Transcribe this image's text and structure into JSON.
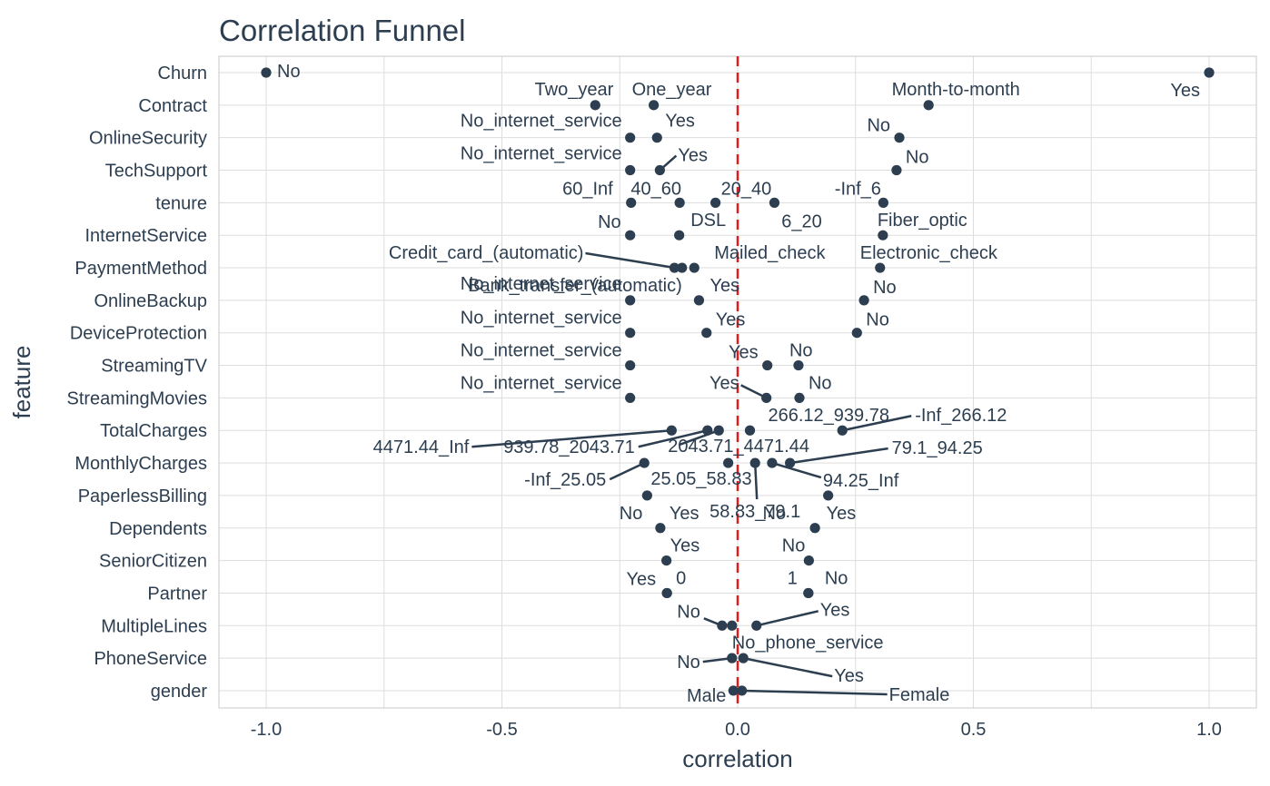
{
  "chart_data": {
    "type": "scatter",
    "title": "Correlation Funnel",
    "xlabel": "correlation",
    "ylabel": "feature",
    "xlim": [
      -1.09,
      1.1
    ],
    "x_ticks": [
      -1.0,
      -0.5,
      0.0,
      0.5,
      1.0
    ],
    "x_tick_labels": [
      "-1.0",
      "-0.5",
      "0.0",
      "0.5",
      "1.0"
    ],
    "reference_line": {
      "x": 0,
      "style": "dashed",
      "color": "#e31a1c"
    },
    "grid": true,
    "point_color": "#2c3e50",
    "features": [
      "Churn",
      "Contract",
      "OnlineSecurity",
      "TechSupport",
      "tenure",
      "InternetService",
      "PaymentMethod",
      "OnlineBackup",
      "DeviceProtection",
      "StreamingTV",
      "StreamingMovies",
      "TotalCharges",
      "MonthlyCharges",
      "PaperlessBilling",
      "Dependents",
      "SeniorCitizen",
      "Partner",
      "MultipleLines",
      "PhoneService",
      "gender"
    ],
    "points": [
      {
        "feature": "Churn",
        "label": "No",
        "x": -1.0
      },
      {
        "feature": "Churn",
        "label": "Yes",
        "x": 1.0
      },
      {
        "feature": "Contract",
        "label": "Two_year",
        "x": -0.302
      },
      {
        "feature": "Contract",
        "label": "One_year",
        "x": -0.178
      },
      {
        "feature": "Contract",
        "label": "Month-to-month",
        "x": 0.405
      },
      {
        "feature": "OnlineSecurity",
        "label": "No_internet_service",
        "x": -0.228
      },
      {
        "feature": "OnlineSecurity",
        "label": "Yes",
        "x": -0.171
      },
      {
        "feature": "OnlineSecurity",
        "label": "No",
        "x": 0.343
      },
      {
        "feature": "TechSupport",
        "label": "No_internet_service",
        "x": -0.228
      },
      {
        "feature": "TechSupport",
        "label": "Yes",
        "x": -0.165
      },
      {
        "feature": "TechSupport",
        "label": "No",
        "x": 0.337
      },
      {
        "feature": "tenure",
        "label": "60_Inf",
        "x": -0.226
      },
      {
        "feature": "tenure",
        "label": "40_60",
        "x": -0.123
      },
      {
        "feature": "tenure",
        "label": "20_40",
        "x": -0.047
      },
      {
        "feature": "tenure",
        "label": "6_20",
        "x": 0.078
      },
      {
        "feature": "tenure",
        "label": "-Inf_6",
        "x": 0.309
      },
      {
        "feature": "InternetService",
        "label": "No",
        "x": -0.228
      },
      {
        "feature": "InternetService",
        "label": "DSL",
        "x": -0.124
      },
      {
        "feature": "InternetService",
        "label": "Fiber_optic",
        "x": 0.308
      },
      {
        "feature": "PaymentMethod",
        "label": "Credit_card_(automatic)",
        "x": -0.134
      },
      {
        "feature": "PaymentMethod",
        "label": "Bank_transfer_(automatic)",
        "x": -0.118
      },
      {
        "feature": "PaymentMethod",
        "label": "Mailed_check",
        "x": -0.092
      },
      {
        "feature": "PaymentMethod",
        "label": "Electronic_check",
        "x": 0.302
      },
      {
        "feature": "OnlineBackup",
        "label": "No_internet_service",
        "x": -0.228
      },
      {
        "feature": "OnlineBackup",
        "label": "Yes",
        "x": -0.082
      },
      {
        "feature": "OnlineBackup",
        "label": "No",
        "x": 0.268
      },
      {
        "feature": "DeviceProtection",
        "label": "No_internet_service",
        "x": -0.228
      },
      {
        "feature": "DeviceProtection",
        "label": "Yes",
        "x": -0.066
      },
      {
        "feature": "DeviceProtection",
        "label": "No",
        "x": 0.253
      },
      {
        "feature": "StreamingTV",
        "label": "No_internet_service",
        "x": -0.228
      },
      {
        "feature": "StreamingTV",
        "label": "Yes",
        "x": 0.063
      },
      {
        "feature": "StreamingTV",
        "label": "No",
        "x": 0.129
      },
      {
        "feature": "StreamingMovies",
        "label": "No_internet_service",
        "x": -0.228
      },
      {
        "feature": "StreamingMovies",
        "label": "Yes",
        "x": 0.061
      },
      {
        "feature": "StreamingMovies",
        "label": "No",
        "x": 0.131
      },
      {
        "feature": "TotalCharges",
        "label": "4471.44_Inf",
        "x": -0.14
      },
      {
        "feature": "TotalCharges",
        "label": "939.78_2043.71",
        "x": -0.064
      },
      {
        "feature": "TotalCharges",
        "label": "2043.71_4471.44",
        "x": -0.04
      },
      {
        "feature": "TotalCharges",
        "label": "266.12_939.78",
        "x": 0.026
      },
      {
        "feature": "TotalCharges",
        "label": "-Inf_266.12",
        "x": 0.222
      },
      {
        "feature": "MonthlyCharges",
        "label": "-Inf_25.05",
        "x": -0.198
      },
      {
        "feature": "MonthlyCharges",
        "label": "25.05_58.83",
        "x": -0.02
      },
      {
        "feature": "MonthlyCharges",
        "label": "58.83_79.1",
        "x": 0.037
      },
      {
        "feature": "MonthlyCharges",
        "label": "94.25_Inf",
        "x": 0.073
      },
      {
        "feature": "MonthlyCharges",
        "label": "79.1_94.25",
        "x": 0.111
      },
      {
        "feature": "PaperlessBilling",
        "label": "No",
        "x": -0.192
      },
      {
        "feature": "PaperlessBilling",
        "label": "Yes",
        "x": 0.192
      },
      {
        "feature": "Dependents",
        "label": "No",
        "x": 0.164
      },
      {
        "feature": "Dependents",
        "label": "Yes",
        "x": -0.164
      },
      {
        "feature": "SeniorCitizen",
        "label": "Yes",
        "x": -0.151
      },
      {
        "feature": "SeniorCitizen",
        "label": "No",
        "x": 0.151
      },
      {
        "feature": "Partner",
        "label": "Yes",
        "x": -0.15
      },
      {
        "feature": "Partner",
        "label": "0",
        "x": -0.15
      },
      {
        "feature": "Partner",
        "label": "1",
        "x": 0.15
      },
      {
        "feature": "Partner",
        "label": "No",
        "x": 0.15
      },
      {
        "feature": "MultipleLines",
        "label": "No",
        "x": -0.033
      },
      {
        "feature": "MultipleLines",
        "label": "No_phone_service",
        "x": -0.012
      },
      {
        "feature": "MultipleLines",
        "label": "Yes",
        "x": 0.04
      },
      {
        "feature": "PhoneService",
        "label": "No",
        "x": -0.012
      },
      {
        "feature": "PhoneService",
        "label": "Yes",
        "x": 0.012
      },
      {
        "feature": "gender",
        "label": "Male",
        "x": -0.009
      },
      {
        "feature": "gender",
        "label": "Female",
        "x": 0.009
      }
    ]
  }
}
